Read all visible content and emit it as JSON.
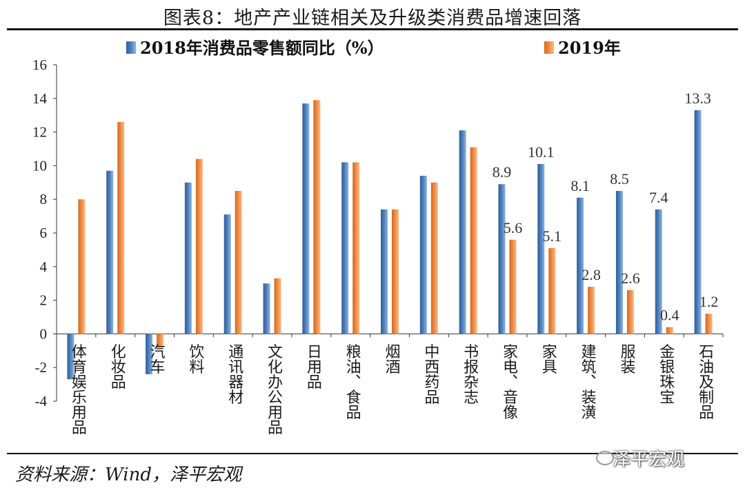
{
  "title": "图表8：地产产业链相关及升级类消费品增速回落",
  "source": "资料来源：Wind，泽平宏观",
  "watermark": "泽平宏观",
  "watermark_icon": "wechat-icon",
  "colors": {
    "series1": "#4a7ebb",
    "series2": "#f0883e"
  },
  "chart_data": {
    "type": "bar",
    "title": "图表8：地产产业链相关及升级类消费品增速回落",
    "xlabel": "",
    "ylabel": "",
    "ylim": [
      -4,
      16
    ],
    "yticks": [
      -4,
      -2,
      0,
      2,
      4,
      6,
      8,
      10,
      12,
      14,
      16
    ],
    "legend_position": "top",
    "categories": [
      "体育娱乐用品",
      "化妆品",
      "汽车",
      "饮料",
      "通讯器材",
      "文化办公用品",
      "日用品",
      "粮油、食品",
      "烟酒",
      "中西药品",
      "书报杂志",
      "家电、音像",
      "家具",
      "建筑、装潢",
      "服装",
      "金银珠宝",
      "石油及制品"
    ],
    "series": [
      {
        "name": "2018年消费品零售额同比（%）",
        "values": [
          -2.7,
          9.7,
          -2.4,
          9.0,
          7.1,
          3.0,
          13.7,
          10.2,
          7.4,
          9.4,
          12.1,
          8.9,
          10.1,
          8.1,
          8.5,
          7.4,
          13.3
        ]
      },
      {
        "name": "2019年",
        "values": [
          8.0,
          12.6,
          -0.8,
          10.4,
          8.5,
          3.3,
          13.9,
          10.2,
          7.4,
          9.0,
          11.1,
          5.6,
          5.1,
          2.8,
          2.6,
          0.4,
          1.2
        ]
      }
    ],
    "data_labels": [
      {
        "series": 0,
        "index": 11,
        "text": "8.9"
      },
      {
        "series": 1,
        "index": 11,
        "text": "5.6"
      },
      {
        "series": 0,
        "index": 12,
        "text": "10.1"
      },
      {
        "series": 1,
        "index": 12,
        "text": "5.1"
      },
      {
        "series": 0,
        "index": 13,
        "text": "8.1"
      },
      {
        "series": 1,
        "index": 13,
        "text": "2.8"
      },
      {
        "series": 0,
        "index": 14,
        "text": "8.5"
      },
      {
        "series": 1,
        "index": 14,
        "text": "2.6"
      },
      {
        "series": 0,
        "index": 15,
        "text": "7.4"
      },
      {
        "series": 1,
        "index": 15,
        "text": "0.4"
      },
      {
        "series": 0,
        "index": 16,
        "text": "13.3"
      },
      {
        "series": 1,
        "index": 16,
        "text": "1.2"
      }
    ]
  }
}
